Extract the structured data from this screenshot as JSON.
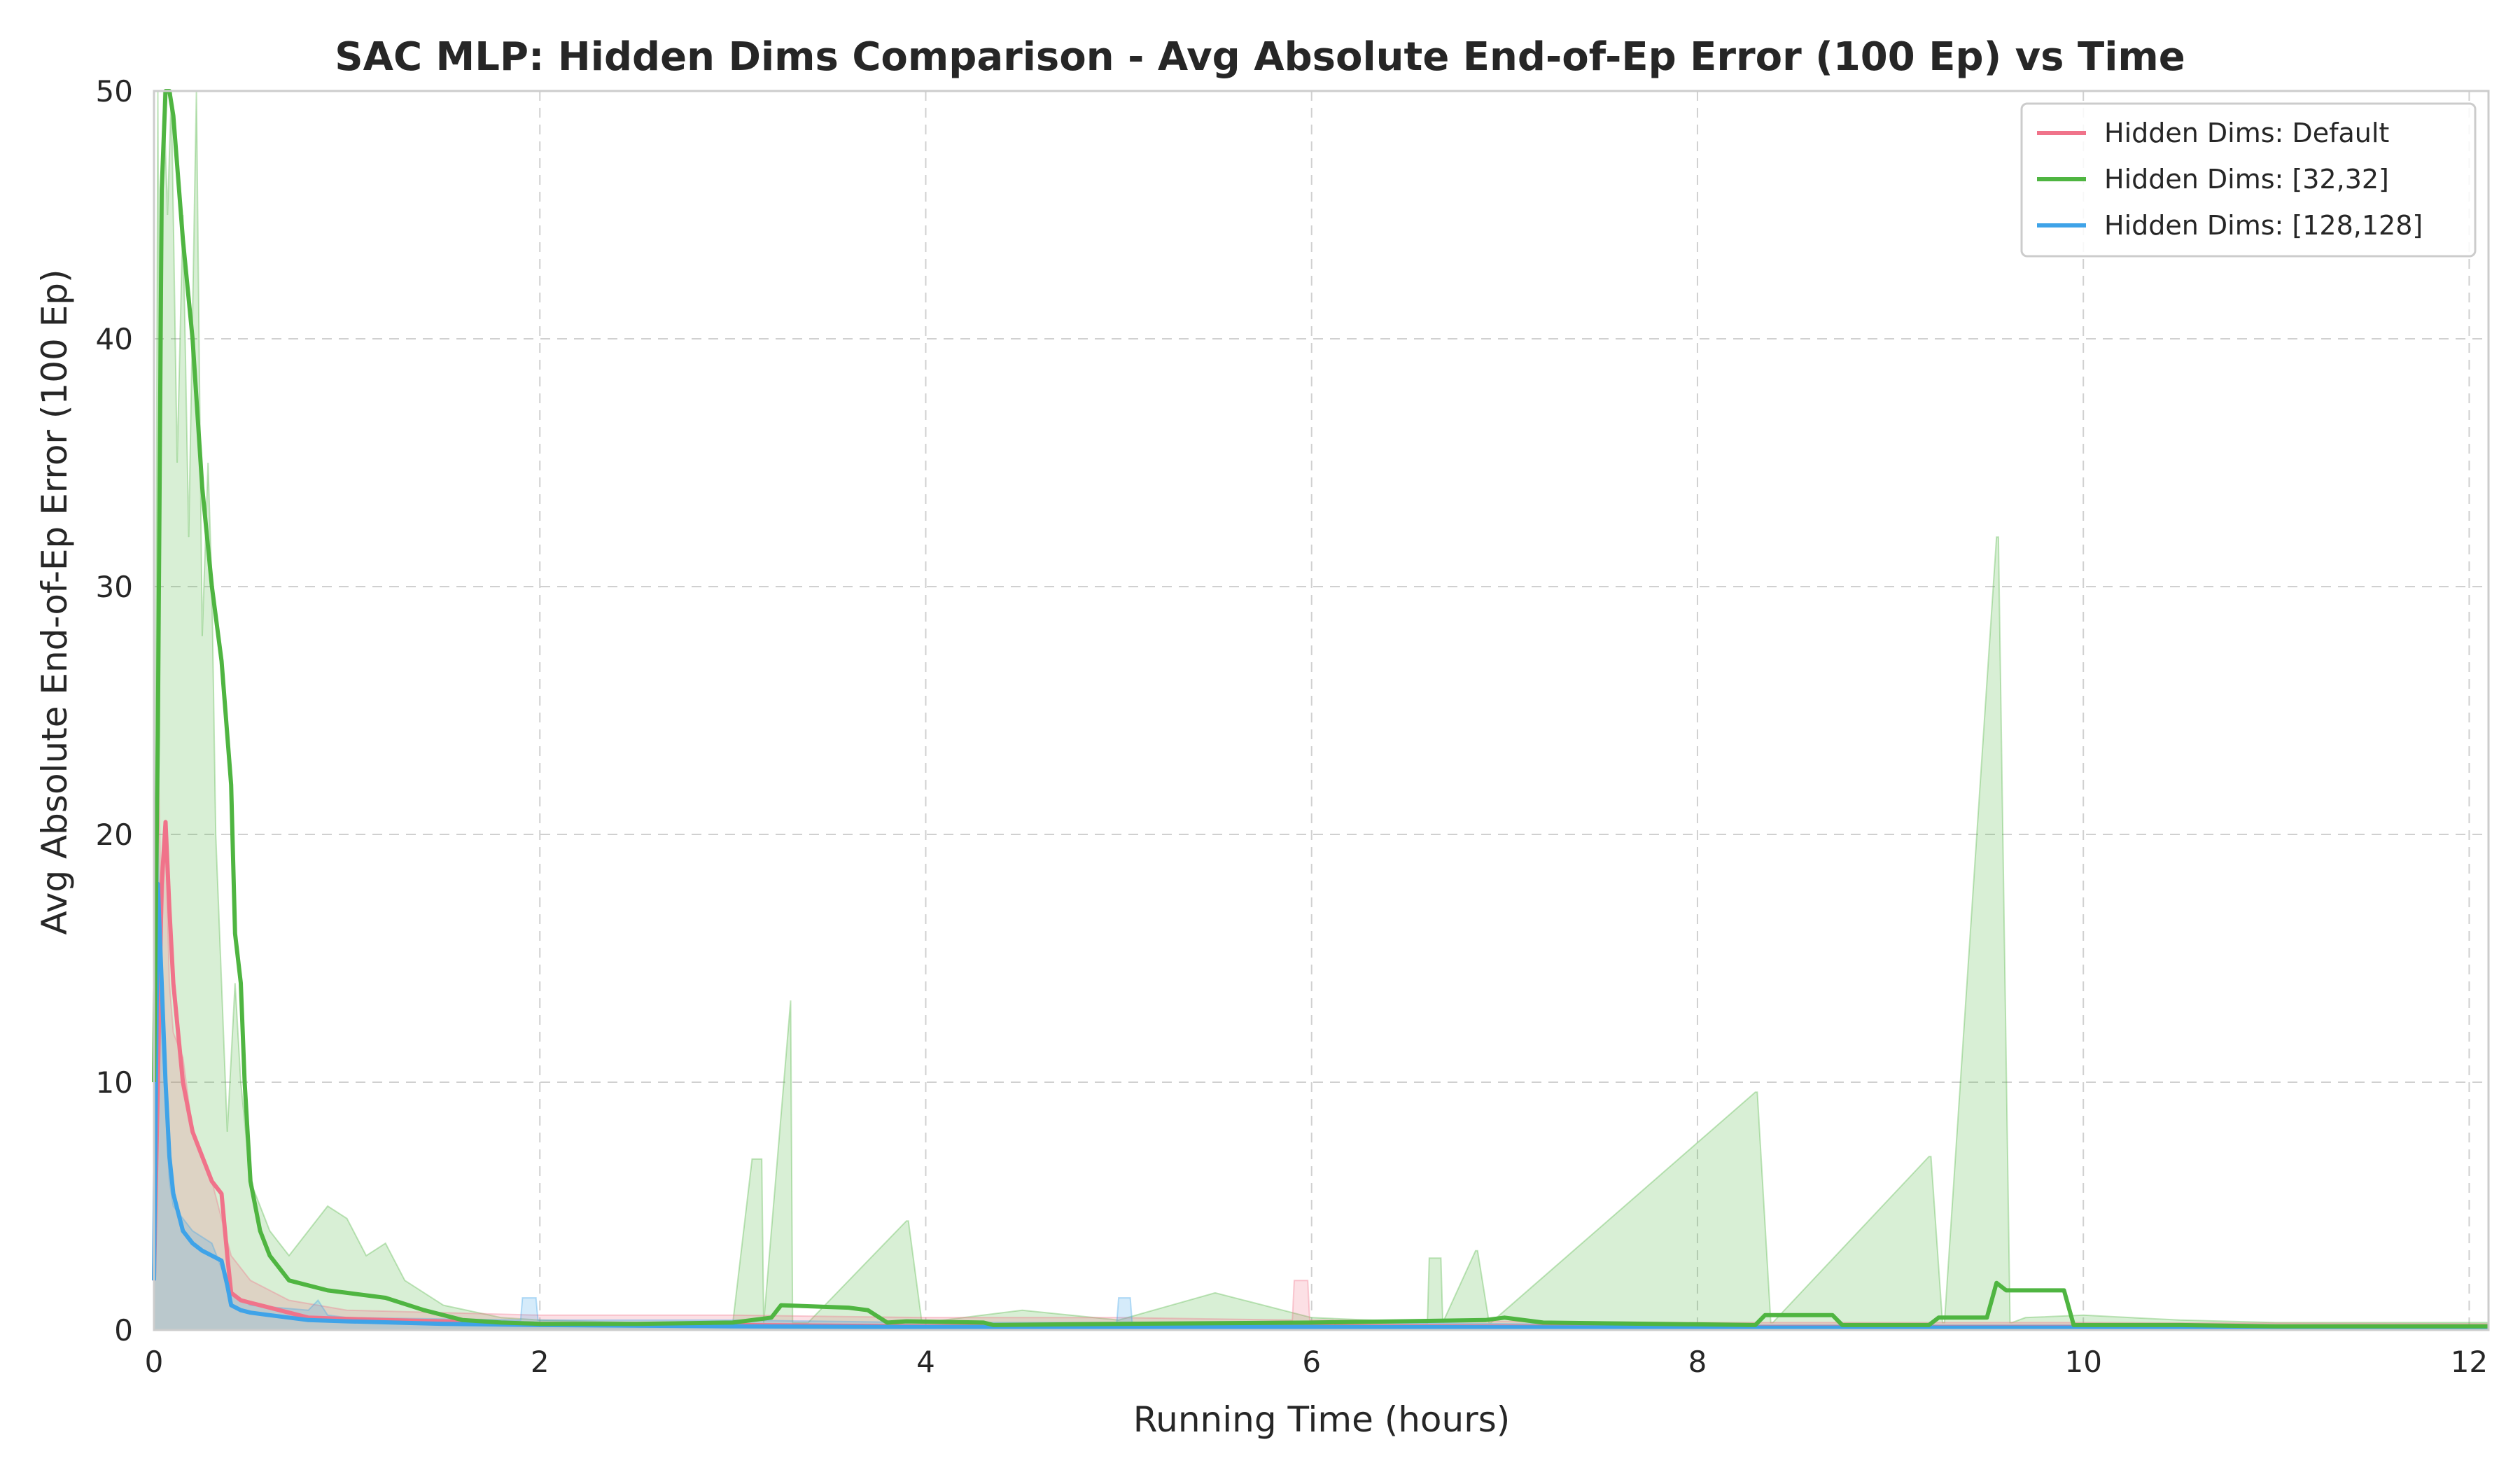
{
  "chart_data": {
    "type": "line",
    "title": "SAC MLP: Hidden Dims Comparison - Avg Absolute End-of-Ep Error (100 Ep) vs Time",
    "xlabel": "Running Time (hours)",
    "ylabel": "Avg Absolute End-of-Ep Error (100 Ep)",
    "xlim": [
      0,
      12.1
    ],
    "ylim": [
      0,
      50
    ],
    "xticks": [
      0,
      2,
      4,
      6,
      8,
      10,
      12
    ],
    "yticks": [
      0,
      10,
      20,
      30,
      40,
      50
    ],
    "grid": true,
    "legend_position": "top-right",
    "series": [
      {
        "name": "Hidden Dims: Default",
        "color": "#f0738a",
        "x": [
          0,
          0.02,
          0.04,
          0.06,
          0.08,
          0.1,
          0.15,
          0.2,
          0.3,
          0.35,
          0.38,
          0.4,
          0.45,
          0.5,
          0.6,
          0.7,
          0.8,
          1.0,
          1.2,
          1.5,
          2.0,
          3.0,
          4.0,
          6.0,
          8.0,
          10.0,
          12.1
        ],
        "y": [
          2,
          10,
          18,
          20.5,
          17,
          14,
          10,
          8,
          6,
          5.5,
          3,
          1.5,
          1.2,
          1.1,
          0.9,
          0.7,
          0.5,
          0.45,
          0.4,
          0.35,
          0.25,
          0.2,
          0.15,
          0.15,
          0.12,
          0.12,
          0.1
        ]
      },
      {
        "name": "Hidden Dims: [32,32]",
        "color": "#4fb541",
        "x": [
          0,
          0.02,
          0.04,
          0.06,
          0.08,
          0.1,
          0.12,
          0.15,
          0.2,
          0.25,
          0.3,
          0.35,
          0.4,
          0.42,
          0.45,
          0.47,
          0.5,
          0.55,
          0.6,
          0.65,
          0.7,
          0.8,
          0.9,
          1.0,
          1.2,
          1.4,
          1.6,
          1.8,
          2.0,
          2.5,
          3.0,
          3.2,
          3.25,
          3.6,
          3.7,
          3.8,
          3.9,
          4.3,
          4.35,
          5.0,
          6.0,
          6.9,
          7.0,
          7.2,
          8.3,
          8.35,
          8.7,
          8.75,
          9.2,
          9.25,
          9.5,
          9.55,
          9.6,
          9.9,
          9.95,
          10.5,
          11.0,
          12.1
        ],
        "y": [
          10,
          24,
          46,
          50,
          50,
          49,
          47,
          44,
          40,
          34,
          30,
          27,
          22,
          16,
          14,
          10,
          6,
          4,
          3,
          2.5,
          2,
          1.8,
          1.6,
          1.5,
          1.3,
          0.8,
          0.4,
          0.3,
          0.25,
          0.25,
          0.3,
          0.5,
          1.0,
          0.9,
          0.8,
          0.3,
          0.35,
          0.3,
          0.2,
          0.25,
          0.3,
          0.4,
          0.5,
          0.3,
          0.2,
          0.6,
          0.6,
          0.2,
          0.2,
          0.5,
          0.5,
          1.9,
          1.6,
          1.6,
          0.2,
          0.2,
          0.15,
          0.15
        ]
      },
      {
        "name": "Hidden Dims: [128,128]",
        "color": "#3fa3e8",
        "x": [
          0,
          0.02,
          0.04,
          0.06,
          0.08,
          0.1,
          0.15,
          0.2,
          0.25,
          0.3,
          0.35,
          0.38,
          0.4,
          0.45,
          0.5,
          0.6,
          0.7,
          0.8,
          1.0,
          1.5,
          2.0,
          3.0,
          4.0,
          6.0,
          8.0,
          10.0,
          12.1
        ],
        "y": [
          2,
          18,
          14,
          10,
          7,
          5.5,
          4,
          3.5,
          3.2,
          3.0,
          2.8,
          1.8,
          1.0,
          0.8,
          0.7,
          0.6,
          0.5,
          0.4,
          0.35,
          0.25,
          0.2,
          0.15,
          0.12,
          0.12,
          0.1,
          0.1,
          0.1
        ]
      }
    ],
    "raw_bands": [
      {
        "series": "Hidden Dims: [32,32]",
        "color": "#4fb541",
        "x": [
          0,
          0.02,
          0.03,
          0.05,
          0.07,
          0.09,
          0.12,
          0.15,
          0.18,
          0.22,
          0.25,
          0.28,
          0.3,
          0.32,
          0.35,
          0.38,
          0.42,
          0.45,
          0.5,
          0.55,
          0.6,
          0.7,
          0.8,
          0.9,
          1.0,
          1.1,
          1.2,
          1.3,
          1.5,
          1.8,
          2.0,
          2.5,
          3.0,
          3.1,
          3.15,
          3.16,
          3.3,
          3.31,
          3.38,
          3.39,
          3.9,
          3.91,
          3.98,
          3.99,
          4.5,
          5.0,
          5.5,
          6.0,
          6.6,
          6.61,
          6.67,
          6.68,
          6.85,
          6.86,
          6.92,
          6.93,
          8.3,
          8.31,
          8.38,
          8.39,
          9.2,
          9.21,
          9.27,
          9.28,
          9.55,
          9.56,
          9.62,
          9.63,
          9.7,
          10.0,
          10.5,
          11.0,
          12.1
        ],
        "y": [
          5,
          50,
          30,
          50,
          45,
          50,
          35,
          45,
          32,
          50,
          28,
          35,
          30,
          20,
          14,
          8,
          14,
          10,
          6,
          5,
          4,
          3,
          4,
          5,
          4.5,
          3,
          3.5,
          2,
          1,
          0.5,
          0.4,
          0.3,
          0.3,
          6.9,
          6.9,
          0.3,
          13.3,
          0.3,
          0.3,
          0.3,
          4.4,
          4.4,
          0.3,
          0.3,
          0.8,
          0.4,
          1.5,
          0.5,
          0.3,
          2.9,
          2.9,
          0.3,
          3.2,
          3.2,
          0.3,
          0.3,
          9.6,
          9.6,
          0.3,
          0.3,
          7.0,
          7.0,
          0.3,
          0.3,
          32.0,
          32.0,
          0.3,
          0.3,
          0.5,
          0.6,
          0.4,
          0.3,
          0.3
        ]
      },
      {
        "series": "Hidden Dims: Default",
        "color": "#f0738a",
        "x": [
          0,
          0.02,
          0.04,
          0.06,
          0.08,
          0.1,
          0.15,
          0.2,
          0.3,
          0.4,
          0.5,
          0.7,
          1.0,
          1.5,
          2.0,
          3.0,
          4.0,
          5.0,
          5.9,
          5.91,
          5.98,
          5.99,
          8.0,
          10.0,
          12.1
        ],
        "y": [
          3,
          24,
          16,
          20,
          14,
          12,
          11,
          8,
          6,
          3,
          2,
          1.2,
          0.8,
          0.7,
          0.6,
          0.6,
          0.5,
          0.5,
          0.4,
          2.0,
          2.0,
          0.4,
          0.3,
          0.3,
          0.25
        ]
      },
      {
        "series": "Hidden Dims: [128,128]",
        "color": "#3fa3e8",
        "x": [
          0,
          0.02,
          0.04,
          0.06,
          0.08,
          0.1,
          0.15,
          0.2,
          0.3,
          0.4,
          0.5,
          0.8,
          0.85,
          0.9,
          1.0,
          1.9,
          1.91,
          1.98,
          1.99,
          3.0,
          4.0,
          4.99,
          5.0,
          5.06,
          5.07,
          6.0,
          8.0,
          10.0,
          12.1
        ],
        "y": [
          2,
          20,
          12,
          9,
          6,
          5,
          4.5,
          4,
          3.5,
          1.5,
          1,
          0.8,
          1.2,
          0.6,
          0.5,
          0.4,
          1.3,
          1.3,
          0.4,
          0.4,
          0.3,
          0.3,
          1.3,
          1.3,
          0.3,
          0.3,
          0.2,
          0.2,
          0.15
        ]
      }
    ]
  }
}
